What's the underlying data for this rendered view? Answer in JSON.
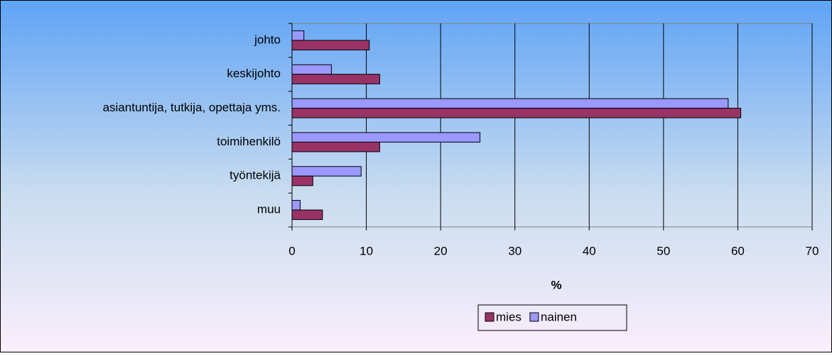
{
  "chart_data": {
    "type": "bar",
    "orientation": "horizontal",
    "categories": [
      "johto",
      "keskijohto",
      "asiantuntija, tutkija, opettaja yms.",
      "toimihenkilö",
      "työntekijä",
      "muu"
    ],
    "series": [
      {
        "name": "mies",
        "color": "#993366",
        "values": [
          10.4,
          11.8,
          60.4,
          11.8,
          2.8,
          4.1
        ]
      },
      {
        "name": "nainen",
        "color": "#9999ff",
        "values": [
          1.6,
          5.3,
          58.7,
          25.3,
          9.3,
          1.1
        ]
      }
    ],
    "xlabel": "%",
    "xlim": [
      0,
      70
    ],
    "xticks": [
      0,
      10,
      20,
      30,
      40,
      50,
      60,
      70
    ],
    "grid": true,
    "legend": "bottom"
  }
}
